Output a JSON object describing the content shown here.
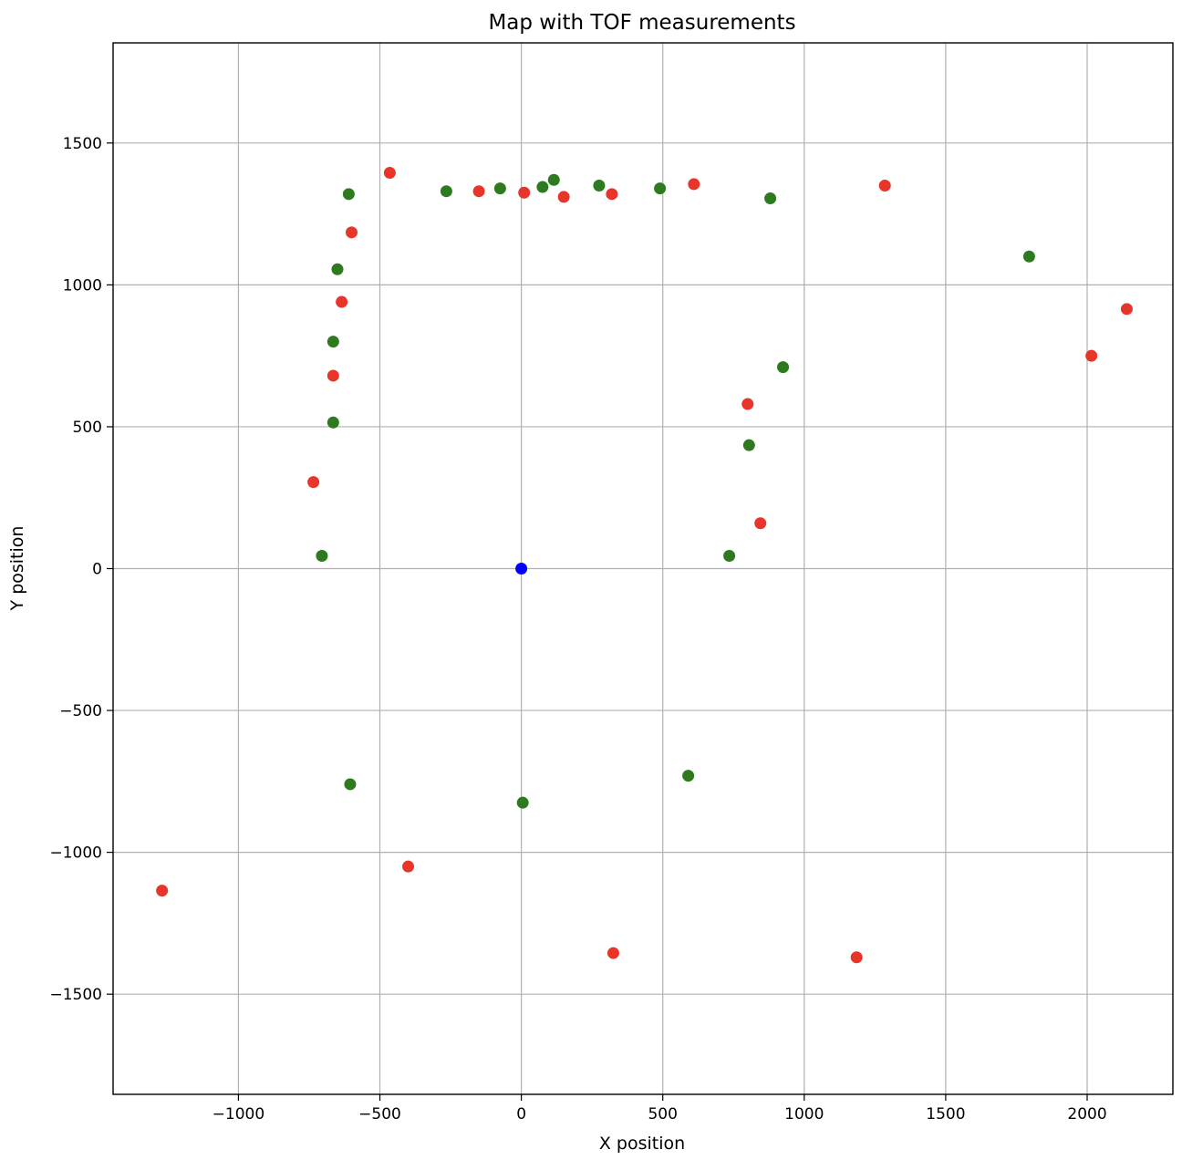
{
  "chart_data": {
    "type": "scatter",
    "title": "Map with TOF measurements",
    "xlabel": "X position",
    "ylabel": "Y position",
    "xlim": [
      -1443,
      2303
    ],
    "ylim": [
      -1853,
      1853
    ],
    "xticks": [
      -1000,
      -500,
      0,
      500,
      1000,
      1500,
      2000
    ],
    "yticks": [
      -1500,
      -1000,
      -500,
      0,
      500,
      1000,
      1500
    ],
    "grid": true,
    "series": [
      {
        "color": "#2d7a1f",
        "points": [
          [
            -610,
            1320
          ],
          [
            -650,
            1055
          ],
          [
            -665,
            800
          ],
          [
            -665,
            515
          ],
          [
            -705,
            45
          ],
          [
            -265,
            1330
          ],
          [
            -75,
            1340
          ],
          [
            75,
            1345
          ],
          [
            115,
            1370
          ],
          [
            275,
            1350
          ],
          [
            490,
            1340
          ],
          [
            880,
            1305
          ],
          [
            1795,
            1100
          ],
          [
            925,
            710
          ],
          [
            805,
            435
          ],
          [
            735,
            45
          ],
          [
            -605,
            -760
          ],
          [
            5,
            -825
          ],
          [
            590,
            -730
          ]
        ]
      },
      {
        "color": "#e8352a",
        "points": [
          [
            -465,
            1395
          ],
          [
            -600,
            1185
          ],
          [
            -635,
            940
          ],
          [
            -665,
            680
          ],
          [
            -735,
            305
          ],
          [
            -150,
            1330
          ],
          [
            10,
            1325
          ],
          [
            150,
            1310
          ],
          [
            320,
            1320
          ],
          [
            610,
            1355
          ],
          [
            1285,
            1350
          ],
          [
            2140,
            915
          ],
          [
            2015,
            750
          ],
          [
            800,
            580
          ],
          [
            845,
            160
          ],
          [
            -1270,
            -1135
          ],
          [
            -400,
            -1050
          ],
          [
            325,
            -1355
          ],
          [
            1185,
            -1370
          ]
        ]
      },
      {
        "color": "#0000ff",
        "points": [
          [
            0,
            0
          ]
        ]
      }
    ]
  }
}
